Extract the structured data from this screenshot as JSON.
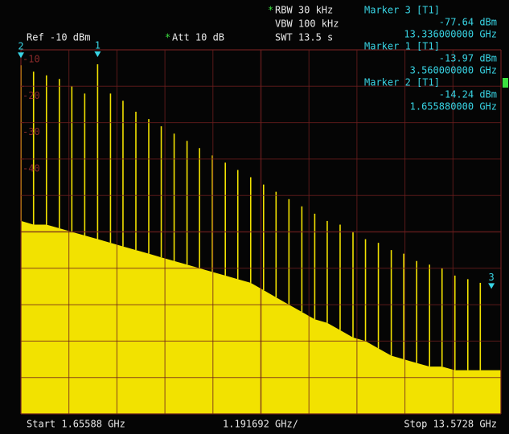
{
  "chart_data": {
    "type": "spectrum",
    "ref_level": "Ref -10 dBm",
    "att_flag": "*",
    "att": "Att  10 dB",
    "rbw_flag": "*",
    "rbw": "RBW 30 kHz",
    "vbw": "VBW 100 kHz",
    "swt": "SWT 13.5 s",
    "start": "Start 1.65588 GHz",
    "span_per_div": "1.191692 GHz/",
    "stop": "Stop 13.5728 GHz",
    "xlim": [
      1.65588,
      13.5728
    ],
    "ylim": [
      -110,
      -10
    ],
    "yticks": [
      -10,
      -20,
      -30,
      -40
    ],
    "x_divisions": 10,
    "y_divisions": 10,
    "trace_color": "#f2e200",
    "grid_color": "#6e1e1e",
    "x": [
      1.66,
      1.97,
      2.29,
      2.61,
      2.92,
      3.24,
      3.56,
      3.88,
      4.19,
      4.51,
      4.83,
      5.14,
      5.46,
      5.78,
      6.09,
      6.41,
      6.73,
      7.04,
      7.36,
      7.68,
      7.99,
      8.31,
      8.63,
      8.95,
      9.26,
      9.58,
      9.9,
      10.21,
      10.53,
      10.85,
      11.16,
      11.48,
      11.8,
      12.11,
      12.43,
      12.75,
      13.06
    ],
    "values": [
      -14.24,
      -16,
      -17,
      -18,
      -20,
      -22,
      -13.97,
      -22,
      -24,
      -27,
      -29,
      -31,
      -33,
      -35,
      -37,
      -39,
      -41,
      -43,
      -45,
      -47,
      -49,
      -51,
      -53,
      -55,
      -57,
      -58,
      -60,
      -62,
      -63,
      -65,
      -66,
      -68,
      -69,
      -70,
      -72,
      -73,
      -74
    ],
    "floor": [
      -57,
      -58,
      -58,
      -59,
      -60,
      -61,
      -62,
      -63,
      -64,
      -65,
      -66,
      -67,
      -68,
      -69,
      -70,
      -71,
      -72,
      -73,
      -74,
      -76,
      -78,
      -80,
      -82,
      -84,
      -85,
      -87,
      -89,
      -90,
      -92,
      -94,
      -95,
      -96,
      -97,
      -97,
      -98,
      -98,
      -98
    ],
    "markers": [
      {
        "name": "Marker 3 [T1]",
        "flag": "3",
        "value": -77.64,
        "value_label": "-77.64 dBm",
        "x": 13.336,
        "x_label": "13.336000000 GHz"
      },
      {
        "name": "Marker 1 [T1]",
        "flag": "1",
        "value": -13.97,
        "value_label": "-13.97 dBm",
        "x": 3.56,
        "x_label": "3.560000000 GHz"
      },
      {
        "name": "Marker 2 [T1]",
        "flag": "2",
        "value": -14.24,
        "value_label": "-14.24 dBm",
        "x": 1.65588,
        "x_label": "1.655880000 GHz"
      }
    ]
  }
}
